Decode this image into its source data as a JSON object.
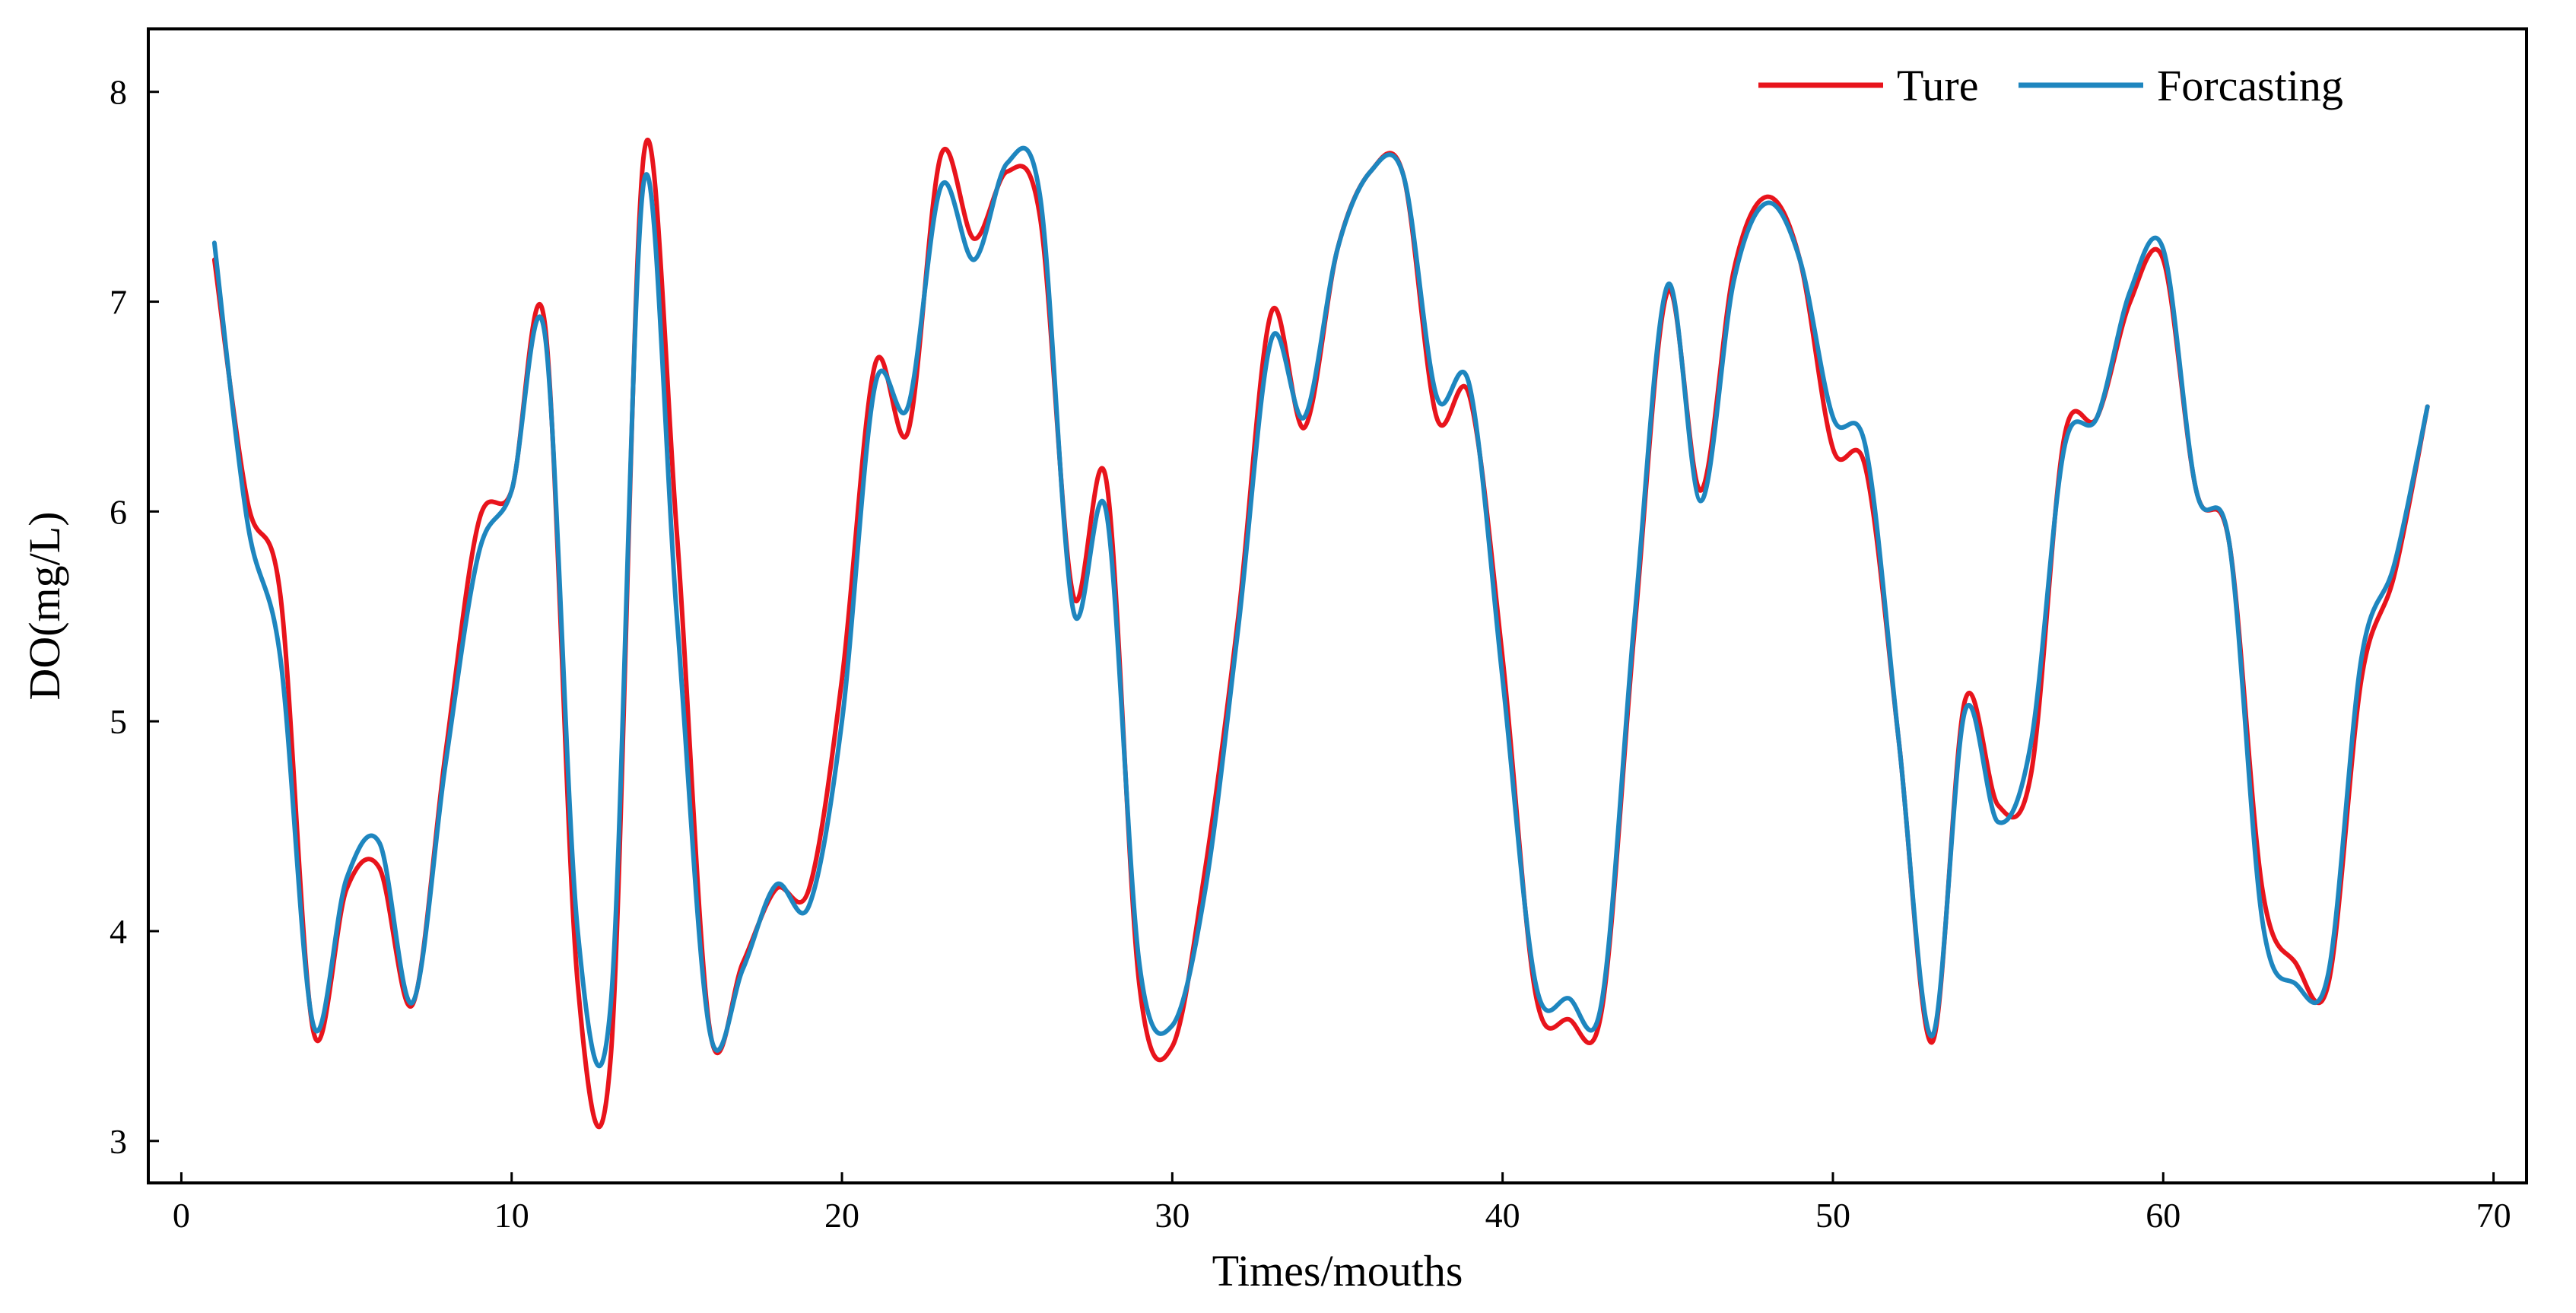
{
  "chart_data": {
    "type": "line",
    "title": "",
    "xlabel": "Times/mouths",
    "ylabel": "DO(mg/L)",
    "xlim": [
      -1,
      71
    ],
    "ylim": [
      2.8,
      8.3
    ],
    "x_ticks": [
      0,
      10,
      20,
      30,
      40,
      50,
      60,
      70
    ],
    "y_ticks": [
      3,
      4,
      5,
      6,
      7,
      8
    ],
    "grid": false,
    "legend_position": "top-right",
    "x": [
      1,
      2,
      3,
      4,
      5,
      6,
      7,
      8,
      9,
      10,
      11,
      12,
      13,
      14,
      15,
      16,
      17,
      18,
      19,
      20,
      21,
      22,
      23,
      24,
      25,
      26,
      27,
      28,
      29,
      30,
      31,
      32,
      33,
      34,
      35,
      36,
      37,
      38,
      39,
      40,
      41,
      42,
      43,
      44,
      45,
      46,
      47,
      48,
      49,
      50,
      51,
      52,
      53,
      54,
      55,
      56,
      57,
      58,
      59,
      60,
      61,
      62,
      63,
      64,
      65,
      66,
      67,
      68
    ],
    "series": [
      {
        "name": "Ture",
        "color": "#e8141c",
        "values": [
          7.2,
          6.05,
          5.6,
          3.52,
          4.2,
          4.3,
          3.65,
          4.85,
          5.95,
          6.1,
          6.9,
          3.75,
          3.4,
          7.7,
          5.9,
          3.53,
          3.85,
          4.2,
          4.2,
          5.2,
          6.7,
          6.38,
          7.7,
          7.3,
          7.62,
          7.4,
          5.6,
          6.15,
          3.75,
          3.45,
          4.3,
          5.5,
          6.95,
          6.4,
          7.25,
          7.62,
          7.6,
          6.45,
          6.55,
          5.3,
          3.7,
          3.58,
          3.62,
          5.45,
          7.05,
          6.1,
          7.15,
          7.5,
          7.2,
          6.3,
          6.2,
          4.9,
          3.47,
          5.1,
          4.6,
          4.75,
          6.35,
          6.45,
          7.0,
          7.2,
          6.1,
          5.85,
          4.2,
          3.85,
          3.75,
          5.2,
          5.7,
          6.5
        ]
      },
      {
        "name": "Forcasting",
        "color": "#1e86bf",
        "values": [
          7.28,
          5.95,
          5.3,
          3.55,
          4.25,
          4.42,
          3.66,
          4.8,
          5.8,
          6.1,
          6.85,
          4.0,
          3.65,
          7.57,
          5.5,
          3.52,
          3.82,
          4.22,
          4.12,
          5.0,
          6.6,
          6.5,
          7.55,
          7.2,
          7.66,
          7.5,
          5.53,
          6.0,
          3.85,
          3.55,
          4.2,
          5.45,
          6.82,
          6.45,
          7.25,
          7.62,
          7.6,
          6.55,
          6.6,
          5.2,
          3.75,
          3.68,
          3.66,
          5.5,
          7.08,
          6.05,
          7.1,
          7.47,
          7.2,
          6.45,
          6.3,
          4.9,
          3.5,
          5.05,
          4.52,
          4.9,
          6.3,
          6.45,
          7.05,
          7.25,
          6.1,
          5.85,
          4.05,
          3.75,
          3.8,
          5.3,
          5.75,
          6.5
        ]
      }
    ]
  }
}
